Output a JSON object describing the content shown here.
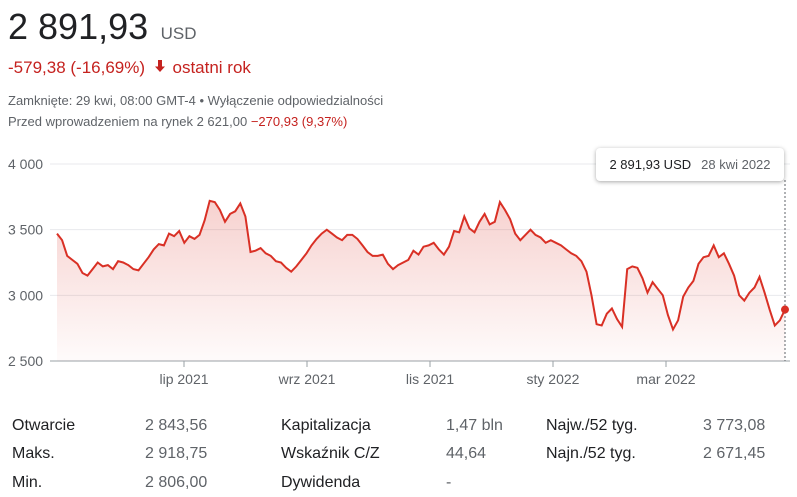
{
  "quote": {
    "price": "2 891,93",
    "currency": "USD",
    "change": "-579,38 (-16,69%)",
    "change_period": "ostatni rok",
    "closed_text": "Zamknięte: 29 kwi, 08:00 GMT-4",
    "separator": " • ",
    "disclaimer": "Wyłączenie odpowiedzialności",
    "premarket_label": "Przed wprowadzeniem na rynek 2 621,00",
    "premarket_change": "−270,93 (9,37%)",
    "down_arrow_icon": "arrow-down-icon"
  },
  "tooltip": {
    "value": "2 891,93 USD",
    "date": "28 kwi 2022"
  },
  "chart_data": {
    "type": "area",
    "y_ticks": [
      "4 000",
      "3 500",
      "3 000",
      "2 500"
    ],
    "y_tick_values": [
      4000,
      3500,
      3000,
      2500
    ],
    "x_ticks": [
      "lip 2021",
      "wrz 2021",
      "lis 2021",
      "sty 2022",
      "mar 2022"
    ],
    "ylim": [
      2500,
      4000
    ],
    "line_color": "#d93025",
    "values": [
      3470,
      3420,
      3300,
      3270,
      3240,
      3170,
      3150,
      3200,
      3250,
      3220,
      3230,
      3200,
      3260,
      3250,
      3230,
      3200,
      3190,
      3240,
      3290,
      3350,
      3390,
      3380,
      3470,
      3450,
      3490,
      3400,
      3450,
      3430,
      3460,
      3570,
      3720,
      3710,
      3650,
      3560,
      3620,
      3640,
      3700,
      3600,
      3330,
      3340,
      3360,
      3320,
      3300,
      3260,
      3250,
      3210,
      3180,
      3220,
      3270,
      3320,
      3380,
      3430,
      3470,
      3500,
      3470,
      3440,
      3420,
      3460,
      3460,
      3430,
      3380,
      3330,
      3300,
      3300,
      3310,
      3240,
      3200,
      3230,
      3250,
      3270,
      3340,
      3310,
      3370,
      3380,
      3400,
      3350,
      3310,
      3370,
      3490,
      3480,
      3600,
      3510,
      3480,
      3560,
      3620,
      3540,
      3560,
      3710,
      3650,
      3580,
      3470,
      3420,
      3460,
      3500,
      3460,
      3440,
      3400,
      3420,
      3400,
      3380,
      3350,
      3320,
      3300,
      3260,
      3180,
      3000,
      2780,
      2770,
      2860,
      2900,
      2820,
      2760,
      3200,
      3220,
      3210,
      3130,
      3020,
      3100,
      3050,
      3000,
      2850,
      2740,
      2810,
      2990,
      3060,
      3110,
      3240,
      3290,
      3300,
      3380,
      3290,
      3320,
      3240,
      3150,
      3000,
      2960,
      3020,
      3060,
      3140,
      3020,
      2890,
      2770,
      2810,
      2892
    ]
  },
  "stats": [
    {
      "label": "Otwarcie",
      "value": "2 843,56"
    },
    {
      "label": "Maks.",
      "value": "2 918,75"
    },
    {
      "label": "Min.",
      "value": "2 806,00"
    },
    {
      "label": "Kapitalizacja",
      "value": "1,47 bln"
    },
    {
      "label": "Wskaźnik C/Z",
      "value": "44,64"
    },
    {
      "label": "Dywidenda",
      "value": "-"
    },
    {
      "label": "Najw./52 tyg.",
      "value": "3 773,08"
    },
    {
      "label": "Najn./52 tyg.",
      "value": "2 671,45"
    }
  ]
}
